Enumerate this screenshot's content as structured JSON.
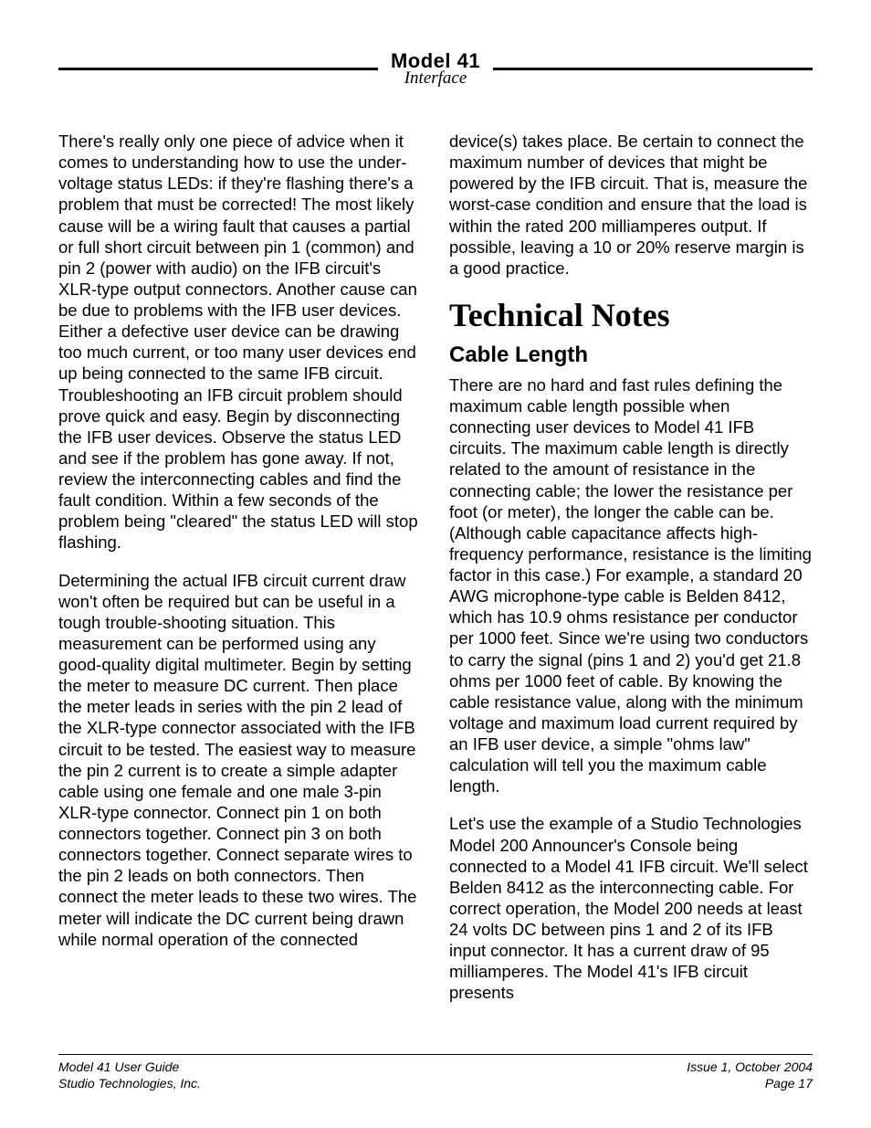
{
  "header": {
    "model": "Model 41",
    "subtitle": "Interface"
  },
  "left_column": {
    "p1": "There's really only one piece of advice when it comes to understanding how to use the under-voltage status LEDs: if they're flashing there's a problem that must be corrected! The most likely cause will be a wiring fault that causes a partial or full short circuit between pin 1 (common) and pin 2 (power with audio) on the IFB circuit's XLR-type output connectors. Another cause can be due to problems with the IFB user devices. Either a defective user device can be drawing too much current, or too many user devices end up being connected to the same IFB circuit. Troubleshooting an IFB circuit problem should prove quick and easy. Begin by disconnecting the IFB user devices. Observe the status LED and see if the problem has gone away. If not, review the interconnecting cables and find the fault condition. Within a few seconds of the problem being \"cleared\" the status LED will stop flashing.",
    "p2": "Determining the actual IFB circuit current draw won't often be required but can be useful in a tough trouble-shooting situation. This measurement can be performed using any good-quality digital multimeter. Begin by setting the meter to measure DC current. Then place the meter leads in series with the pin 2 lead of the XLR-type connector associated with the IFB circuit to be tested. The easiest way to measure the pin 2 current is to create a simple adapter cable using one female and one male 3-pin XLR-type connector. Connect pin 1 on both connectors together. Connect pin 3 on both connectors together. Connect separate wires to the pin 2 leads on both connectors. Then connect the meter leads to these two wires. The meter will indicate the DC current being drawn while normal operation of the connected"
  },
  "right_column": {
    "p1": "device(s) takes place. Be certain to connect the maximum number of devices that might be powered by the IFB circuit. That is, measure the worst-case condition and ensure that the load is within the rated 200 milliamperes output. If possible, leaving a 10 or 20% reserve margin is a good practice.",
    "h1": "Technical Notes",
    "h2": "Cable Length",
    "p2": "There are no hard and fast rules defining the maximum cable length possible when connecting user devices to Model 41 IFB circuits. The maximum cable length is directly related to the amount of resistance in the connecting cable; the lower the resistance per foot (or meter), the longer the cable can be. (Although cable capacitance affects high-frequency performance, resistance is the limiting factor in this case.) For example, a standard 20 AWG microphone-type cable is Belden 8412, which has 10.9 ohms resistance per conductor per 1000 feet. Since we're using two conductors to carry the signal (pins 1 and 2) you'd get 21.8 ohms per 1000 feet of cable. By knowing the cable resistance value, along with the minimum voltage and maximum load current required by an IFB user device, a simple \"ohms law\" calculation will tell you the maximum cable length.",
    "p3": "Let's use the example of a Studio Technologies Model 200 Announcer's Console being connected to a Model 41 IFB circuit. We'll select Belden 8412 as the interconnecting cable. For correct operation, the Model 200 needs at least 24 volts DC between pins 1 and 2 of its IFB input connector. It has a current draw of 95 milliamperes. The Model 41's IFB circuit presents"
  },
  "footer": {
    "left1": "Model 41 User Guide",
    "left2": "Studio Technologies, Inc.",
    "right1": "Issue 1, October 2004",
    "right2": "Page 17"
  }
}
